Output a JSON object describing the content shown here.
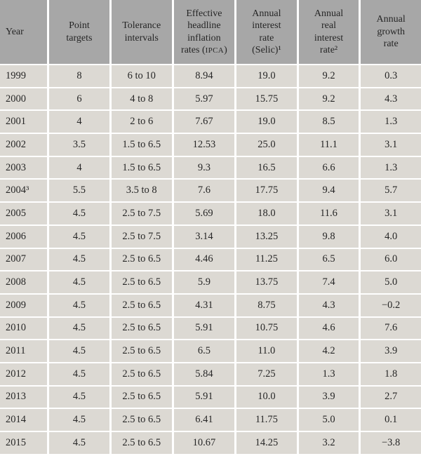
{
  "colors": {
    "header_bg": "#a7a7a7",
    "row_bg": "#dcd9d3",
    "grid": "#ffffff",
    "text": "#262626"
  },
  "chart_data": {
    "type": "table",
    "columns": [
      {
        "id": "year",
        "label": "Year",
        "lines": [
          "Year"
        ],
        "align": "left"
      },
      {
        "id": "point-targets",
        "label": "Point targets",
        "lines": [
          "Point",
          "targets"
        ]
      },
      {
        "id": "tolerance-intervals",
        "label": "Tolerance intervals",
        "lines": [
          "Tolerance",
          "intervals"
        ]
      },
      {
        "id": "effective-headline-inflation-rates-ipca",
        "label": "Effective headline inflation rates (IPCA)",
        "lines": [
          "Effective",
          "headline",
          "inflation",
          "rates (IPCA)"
        ],
        "smallcaps": "IPCA"
      },
      {
        "id": "annual-interest-rate-selic",
        "label": "Annual interest rate (Selic)¹",
        "lines": [
          "Annual",
          "interest",
          "rate",
          "(Selic)¹"
        ]
      },
      {
        "id": "annual-real-interest-rate",
        "label": "Annual real interest rate²",
        "lines": [
          "Annual",
          "real",
          "interest",
          "rate²"
        ]
      },
      {
        "id": "annual-growth-rate",
        "label": "Annual growth rate",
        "lines": [
          "Annual",
          "growth",
          "rate"
        ]
      }
    ],
    "rows": [
      [
        "1999",
        "8",
        "6 to 10",
        "8.94",
        "19.0",
        "9.2",
        "0.3"
      ],
      [
        "2000",
        "6",
        "4 to 8",
        "5.97",
        "15.75",
        "9.2",
        "4.3"
      ],
      [
        "2001",
        "4",
        "2 to 6",
        "7.67",
        "19.0",
        "8.5",
        "1.3"
      ],
      [
        "2002",
        "3.5",
        "1.5 to 6.5",
        "12.53",
        "25.0",
        "11.1",
        "3.1"
      ],
      [
        "2003",
        "4",
        "1.5 to 6.5",
        "9.3",
        "16.5",
        "6.6",
        "1.3"
      ],
      [
        "2004³",
        "5.5",
        "3.5 to 8",
        "7.6",
        "17.75",
        "9.4",
        "5.7"
      ],
      [
        "2005",
        "4.5",
        "2.5 to 7.5",
        "5.69",
        "18.0",
        "11.6",
        "3.1"
      ],
      [
        "2006",
        "4.5",
        "2.5 to 7.5",
        "3.14",
        "13.25",
        "9.8",
        "4.0"
      ],
      [
        "2007",
        "4.5",
        "2.5 to 6.5",
        "4.46",
        "11.25",
        "6.5",
        "6.0"
      ],
      [
        "2008",
        "4.5",
        "2.5 to 6.5",
        "5.9",
        "13.75",
        "7.4",
        "5.0"
      ],
      [
        "2009",
        "4.5",
        "2.5 to 6.5",
        "4.31",
        "8.75",
        "4.3",
        "−0.2"
      ],
      [
        "2010",
        "4.5",
        "2.5 to 6.5",
        "5.91",
        "10.75",
        "4.6",
        "7.6"
      ],
      [
        "2011",
        "4.5",
        "2.5 to 6.5",
        "6.5",
        "11.0",
        "4.2",
        "3.9"
      ],
      [
        "2012",
        "4.5",
        "2.5 to 6.5",
        "5.84",
        "7.25",
        "1.3",
        "1.8"
      ],
      [
        "2013",
        "4.5",
        "2.5 to 6.5",
        "5.91",
        "10.0",
        "3.9",
        "2.7"
      ],
      [
        "2014",
        "4.5",
        "2.5 to 6.5",
        "6.41",
        "11.75",
        "5.0",
        "0.1"
      ],
      [
        "2015",
        "4.5",
        "2.5 to 6.5",
        "10.67",
        "14.25",
        "3.2",
        "−3.8"
      ]
    ]
  }
}
